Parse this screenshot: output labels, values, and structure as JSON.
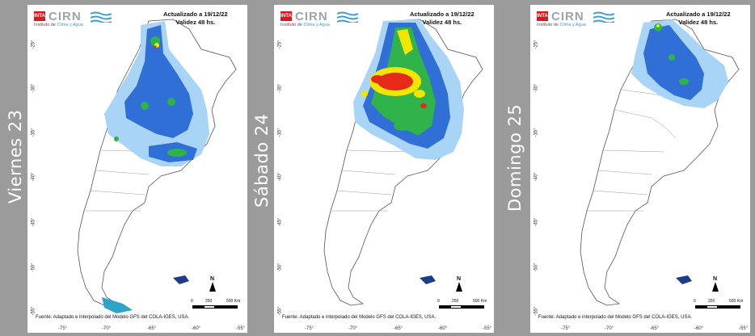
{
  "panels": [
    {
      "day": "Viernes 23"
    },
    {
      "day": "Sábado 24"
    },
    {
      "day": "Domingo 25"
    }
  ],
  "header": {
    "org": "CIRN",
    "inta": "INTA",
    "institute_prefix": "Instituto de ",
    "institute_highlight": "Clima y Agua",
    "updated": "Actualizado a 19/12/22",
    "validity": "Validez 48 hs."
  },
  "source": "Fuente: Adaptado e interpolado del Modelo GFS del COLA-IGES, USA.",
  "lat_ticks": [
    "-25°",
    "-30°",
    "-35°",
    "-40°",
    "-45°",
    "-50°",
    "-55°"
  ],
  "lon_ticks": [
    "-75°",
    "-70°",
    "-65°",
    "-60°",
    "-55°"
  ],
  "scale": {
    "zero": "0",
    "mid": "250",
    "end": "500 Km"
  },
  "north": "N",
  "colors": {
    "light_blue": "#a8d4f5",
    "blue": "#2f6fd6",
    "green": "#2fb34a",
    "yellow": "#f2e600",
    "red": "#e52a1a"
  }
}
